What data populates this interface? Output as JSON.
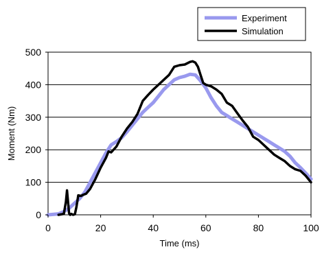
{
  "chart_data": {
    "type": "line",
    "xlabel": "Time (ms)",
    "ylabel": "Moment (Nm)",
    "xlim": [
      0,
      100
    ],
    "ylim": [
      0,
      500
    ],
    "xticks": [
      0,
      20,
      40,
      60,
      80,
      100
    ],
    "yticks": [
      0,
      100,
      200,
      300,
      400,
      500
    ],
    "xtick_labels": [
      "0",
      "20",
      "40",
      "60",
      "80",
      "100"
    ],
    "ytick_labels": [
      "0",
      "100",
      "200",
      "300",
      "400",
      "500"
    ],
    "grid": "horizontal",
    "legend_position": "top-right",
    "series": [
      {
        "name": "Experiment",
        "color": "#9999ee",
        "x": [
          0,
          4,
          6,
          8,
          10,
          12,
          14,
          16,
          18,
          20,
          22,
          24,
          26,
          28,
          30,
          32,
          34,
          36,
          38,
          40,
          42,
          44,
          46,
          48,
          50,
          52,
          54,
          56,
          58,
          60,
          62,
          64,
          66,
          68,
          70,
          72,
          74,
          76,
          78,
          80,
          82,
          84,
          86,
          88,
          90,
          92,
          94,
          96,
          98,
          100
        ],
        "y": [
          0,
          3,
          10,
          20,
          35,
          50,
          70,
          100,
          130,
          160,
          190,
          215,
          225,
          237,
          255,
          275,
          295,
          315,
          330,
          345,
          365,
          385,
          400,
          415,
          422,
          426,
          432,
          430,
          412,
          390,
          360,
          335,
          315,
          305,
          295,
          285,
          275,
          265,
          255,
          245,
          235,
          225,
          215,
          205,
          195,
          180,
          160,
          145,
          128,
          110
        ]
      },
      {
        "name": "Simulation",
        "color": "#000000",
        "x": [
          4,
          6,
          6.8,
          7.2,
          7.6,
          8,
          8.4,
          8.8,
          9.5,
          10.2,
          10.8,
          11.5,
          12.5,
          13.5,
          14.5,
          16,
          18,
          20,
          22,
          23,
          24,
          26,
          28,
          30,
          32,
          34,
          36,
          38,
          40,
          42,
          44,
          46,
          48,
          50,
          52,
          54,
          55,
          56,
          57,
          58,
          59,
          60,
          62,
          64,
          66,
          68,
          70,
          72,
          74,
          76,
          78,
          80,
          82,
          84,
          86,
          88,
          90,
          92,
          94,
          96,
          98,
          100
        ],
        "y": [
          0,
          3,
          40,
          75,
          40,
          5,
          0,
          3,
          0,
          2,
          25,
          60,
          58,
          62,
          65,
          80,
          110,
          145,
          175,
          195,
          192,
          210,
          240,
          265,
          285,
          310,
          350,
          368,
          385,
          400,
          415,
          430,
          455,
          460,
          462,
          470,
          472,
          468,
          455,
          430,
          405,
          400,
          395,
          385,
          372,
          345,
          335,
          312,
          290,
          270,
          240,
          230,
          215,
          200,
          185,
          175,
          165,
          150,
          140,
          135,
          120,
          100
        ]
      }
    ]
  }
}
